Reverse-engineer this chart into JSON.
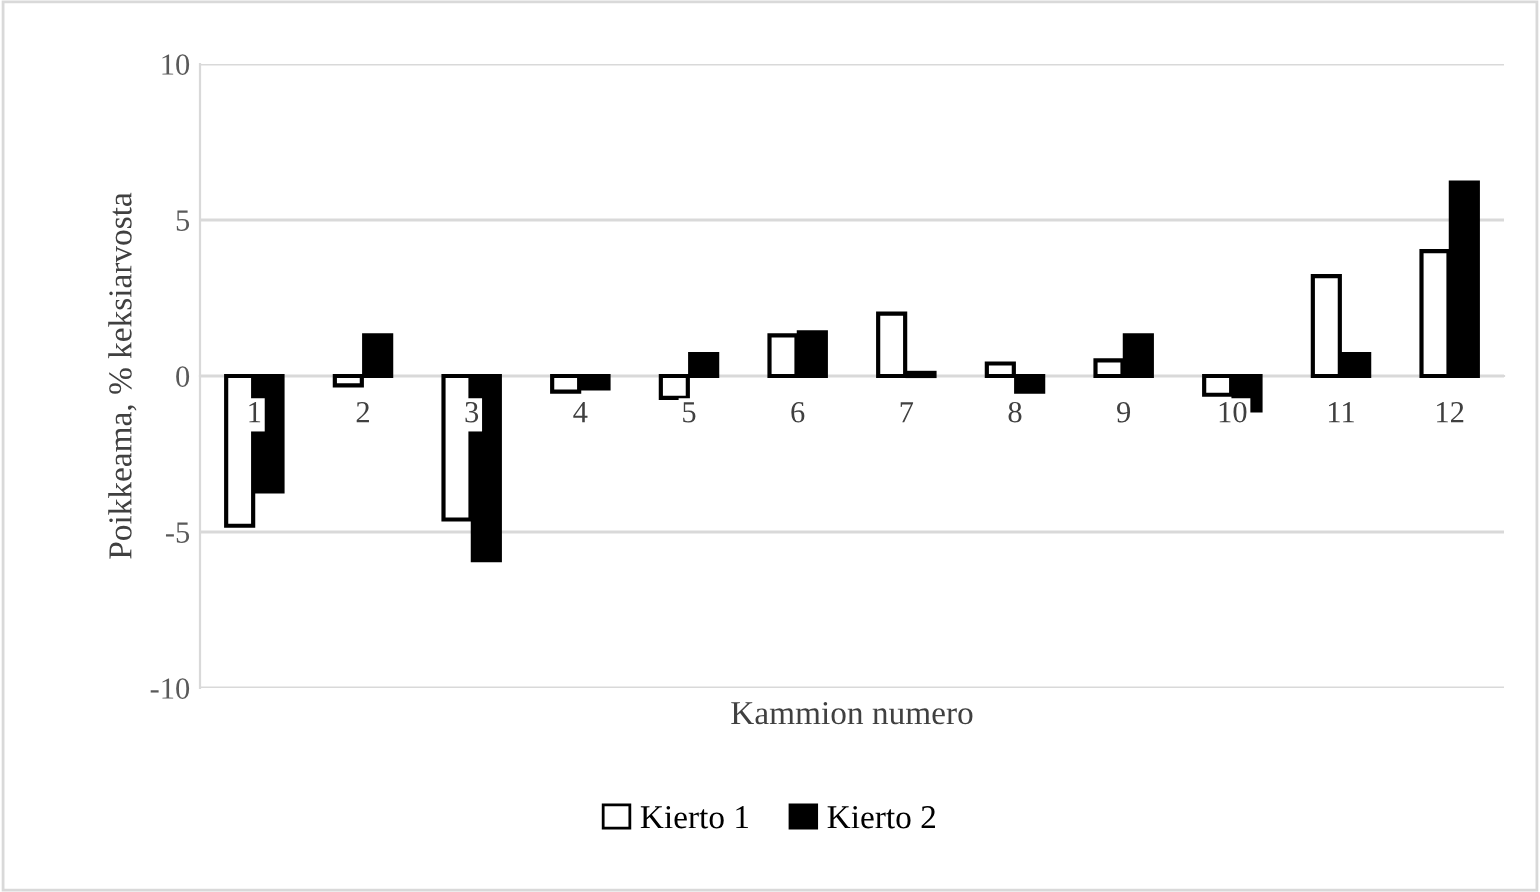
{
  "chart_data": {
    "type": "bar",
    "xlabel": "Kammion numero",
    "ylabel": "Poikkeama, % keksiarvosta",
    "categories": [
      "1",
      "2",
      "3",
      "4",
      "5",
      "6",
      "7",
      "8",
      "9",
      "10",
      "11",
      "12"
    ],
    "series": [
      {
        "name": "Kierto 1",
        "color": "#ffffff",
        "values": [
          -4.8,
          -0.3,
          -4.6,
          -0.5,
          -0.7,
          1.3,
          2.0,
          0.4,
          0.5,
          -0.6,
          3.2,
          4.0
        ]
      },
      {
        "name": "Kierto 2",
        "color": "#000000",
        "values": [
          -3.7,
          1.3,
          -5.9,
          -0.4,
          0.7,
          1.4,
          0.1,
          -0.5,
          1.3,
          -1.1,
          0.7,
          6.2
        ]
      }
    ],
    "ylim": [
      -10,
      10
    ],
    "yticks": [
      -10,
      -5,
      0,
      5,
      10
    ],
    "grid": "y",
    "legend": "bottom"
  }
}
